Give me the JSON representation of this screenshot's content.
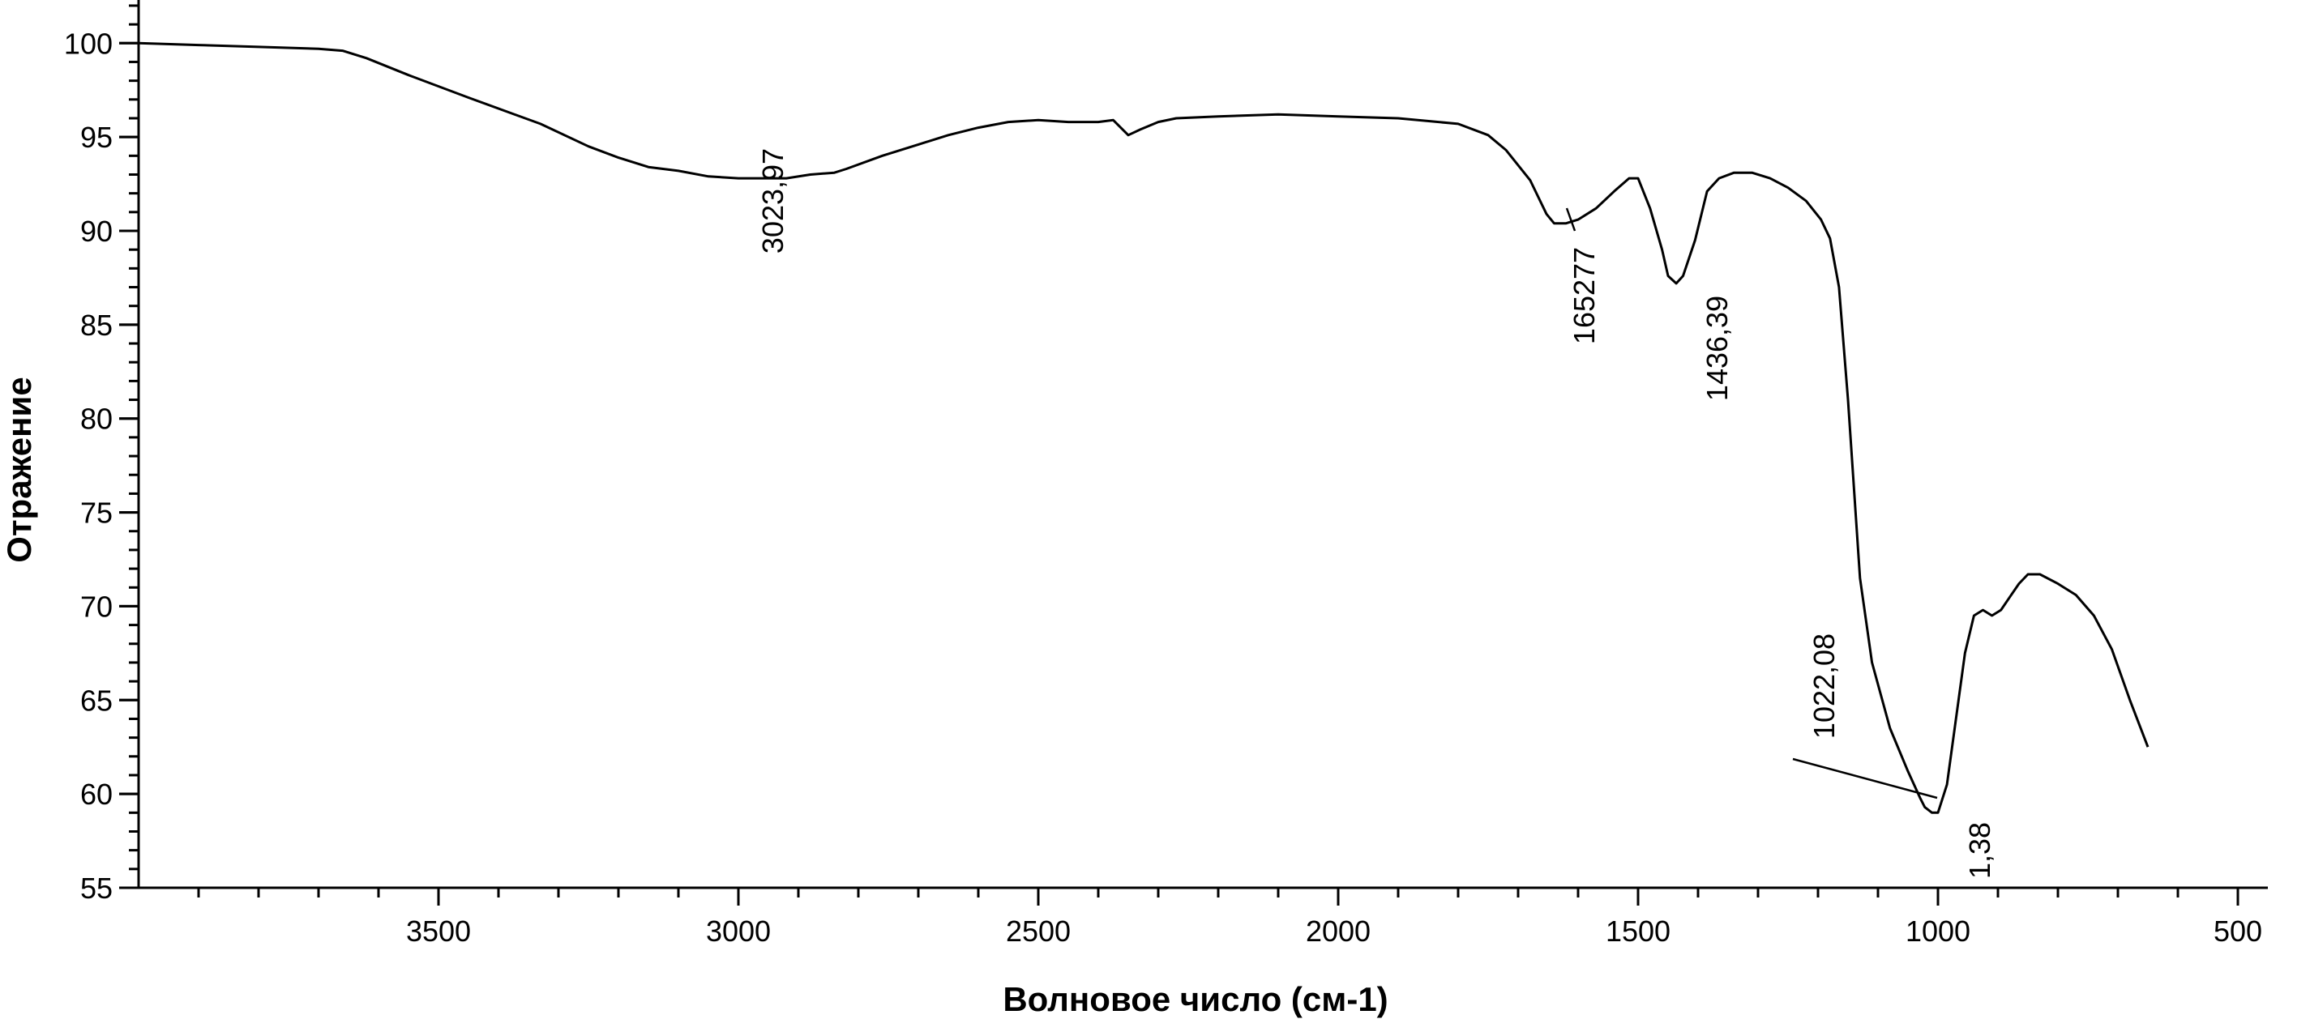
{
  "chart_data": {
    "type": "line",
    "xlabel": "Волновое число (см-1)",
    "ylabel": "Отражение",
    "xlim": [
      4000,
      450
    ],
    "ylim": [
      55,
      102.3
    ],
    "x_ticks": [
      3500,
      3000,
      2500,
      2000,
      1500,
      1000,
      500
    ],
    "y_ticks": [
      55,
      60,
      65,
      70,
      75,
      80,
      85,
      90,
      95,
      100
    ],
    "grid": false,
    "series": [
      {
        "points": [
          [
            4000,
            100.0
          ],
          [
            3900,
            99.9
          ],
          [
            3800,
            99.8
          ],
          [
            3700,
            99.7
          ],
          [
            3660,
            99.6
          ],
          [
            3620,
            99.2
          ],
          [
            3550,
            98.3
          ],
          [
            3450,
            97.1
          ],
          [
            3330,
            95.7
          ],
          [
            3250,
            94.5
          ],
          [
            3200,
            93.9
          ],
          [
            3150,
            93.4
          ],
          [
            3100,
            93.2
          ],
          [
            3050,
            92.9
          ],
          [
            3000,
            92.8
          ],
          [
            2950,
            92.8
          ],
          [
            2920,
            92.8
          ],
          [
            2880,
            93.0
          ],
          [
            2840,
            93.1
          ],
          [
            2820,
            93.3
          ],
          [
            2760,
            94.0
          ],
          [
            2700,
            94.6
          ],
          [
            2650,
            95.1
          ],
          [
            2600,
            95.5
          ],
          [
            2550,
            95.8
          ],
          [
            2500,
            95.9
          ],
          [
            2450,
            95.8
          ],
          [
            2400,
            95.8
          ],
          [
            2375,
            95.9
          ],
          [
            2350,
            95.1
          ],
          [
            2330,
            95.4
          ],
          [
            2300,
            95.8
          ],
          [
            2270,
            96.0
          ],
          [
            2200,
            96.1
          ],
          [
            2100,
            96.2
          ],
          [
            2000,
            96.1
          ],
          [
            1900,
            96.0
          ],
          [
            1800,
            95.7
          ],
          [
            1750,
            95.1
          ],
          [
            1720,
            94.3
          ],
          [
            1680,
            92.7
          ],
          [
            1652.77,
            90.9
          ],
          [
            1640,
            90.4
          ],
          [
            1620,
            90.4
          ],
          [
            1600,
            90.6
          ],
          [
            1570,
            91.2
          ],
          [
            1540,
            92.1
          ],
          [
            1515,
            92.8
          ],
          [
            1500,
            92.8
          ],
          [
            1480,
            91.2
          ],
          [
            1460,
            89.0
          ],
          [
            1450,
            87.6
          ],
          [
            1436.39,
            87.2
          ],
          [
            1425,
            87.6
          ],
          [
            1405,
            89.5
          ],
          [
            1385,
            92.1
          ],
          [
            1365,
            92.8
          ],
          [
            1340,
            93.1
          ],
          [
            1310,
            93.1
          ],
          [
            1280,
            92.8
          ],
          [
            1250,
            92.3
          ],
          [
            1220,
            91.6
          ],
          [
            1205,
            91.0
          ],
          [
            1195,
            90.6
          ],
          [
            1180,
            89.6
          ],
          [
            1165,
            87.0
          ],
          [
            1150,
            81.0
          ],
          [
            1130,
            71.5
          ],
          [
            1110,
            67.0
          ],
          [
            1080,
            63.5
          ],
          [
            1050,
            61.2
          ],
          [
            1030,
            59.8
          ],
          [
            1022.08,
            59.3
          ],
          [
            1010,
            59.0
          ],
          [
            1000,
            59.0
          ],
          [
            985,
            60.5
          ],
          [
            970,
            64.0
          ],
          [
            955,
            67.5
          ],
          [
            940,
            69.5
          ],
          [
            925,
            69.8
          ],
          [
            910,
            69.5
          ],
          [
            895,
            69.8
          ],
          [
            880,
            70.5
          ],
          [
            865,
            71.2
          ],
          [
            850,
            71.7
          ],
          [
            830,
            71.7
          ],
          [
            800,
            71.2
          ],
          [
            770,
            70.6
          ],
          [
            740,
            69.5
          ],
          [
            710,
            67.7
          ],
          [
            680,
            65.0
          ],
          [
            650,
            62.5
          ]
        ]
      }
    ],
    "annotations": [
      {
        "label": "3023,97",
        "x": 2950,
        "y": 92.8
      },
      {
        "label": "165277",
        "x": 1630,
        "y": 90.4
      },
      {
        "label": "1436,39",
        "x": 1436.39,
        "y": 87.2
      },
      {
        "label": "1022,08",
        "x": 1022.08,
        "y": 59.3
      },
      {
        "label": "1,38",
        "x": 1000,
        "y": 59.0
      }
    ]
  }
}
